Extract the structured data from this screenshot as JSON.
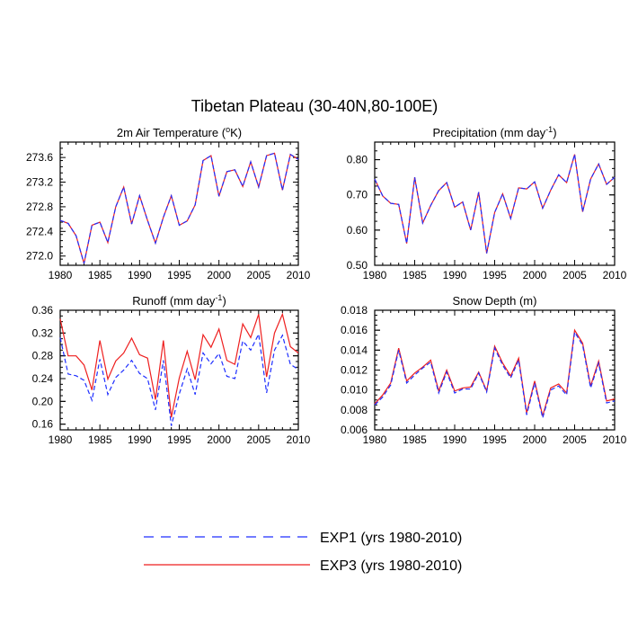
{
  "title": "Tibetan Plateau (30-40N,80-100E)",
  "colors": {
    "exp1": "#1f2fff",
    "exp3": "#ee1f1f"
  },
  "legend": [
    {
      "key": "exp1",
      "label": "EXP1 (yrs 1980-2010)",
      "style": "dashed"
    },
    {
      "key": "exp3",
      "label": "EXP3 (yrs 1980-2010)",
      "style": "solid"
    }
  ],
  "chart_data": [
    {
      "type": "line",
      "title": "2m Air Temperature (°K)",
      "title_parts": {
        "main": "2m Air Temperature (",
        "sup": "o",
        "tail": "K)"
      },
      "xlim": [
        1980,
        2010
      ],
      "ylim": [
        271.85,
        273.85
      ],
      "xticks": [
        1980,
        1985,
        1990,
        1995,
        2000,
        2005,
        2010
      ],
      "yticks": [
        "272.0",
        "272.4",
        "272.8",
        "273.2",
        "273.6"
      ],
      "x": [
        1980,
        1981,
        1982,
        1983,
        1984,
        1985,
        1986,
        1987,
        1988,
        1989,
        1990,
        1991,
        1992,
        1993,
        1994,
        1995,
        1996,
        1997,
        1998,
        1999,
        2000,
        2001,
        2002,
        2003,
        2004,
        2005,
        2006,
        2007,
        2008,
        2009,
        2010
      ],
      "series": [
        {
          "key": "exp1",
          "values": [
            272.58,
            272.53,
            272.33,
            271.88,
            272.5,
            272.55,
            272.22,
            272.8,
            273.12,
            272.52,
            272.98,
            272.58,
            272.21,
            272.63,
            272.98,
            272.5,
            272.57,
            272.83,
            273.55,
            273.63,
            272.97,
            273.37,
            273.4,
            273.13,
            273.53,
            273.12,
            273.63,
            273.67,
            273.07,
            273.65,
            273.57
          ]
        },
        {
          "key": "exp3",
          "values": [
            272.58,
            272.53,
            272.33,
            271.88,
            272.5,
            272.55,
            272.22,
            272.8,
            273.12,
            272.52,
            272.98,
            272.58,
            272.21,
            272.63,
            272.98,
            272.5,
            272.57,
            272.83,
            273.55,
            273.63,
            272.97,
            273.37,
            273.4,
            273.13,
            273.53,
            273.12,
            273.63,
            273.67,
            273.07,
            273.65,
            273.57
          ]
        }
      ]
    },
    {
      "type": "line",
      "title": "Precipitation (mm day-1)",
      "title_parts": {
        "main": "Precipitation (mm day",
        "sup": "-1",
        "tail": ")"
      },
      "xlim": [
        1980,
        2010
      ],
      "ylim": [
        0.5,
        0.85
      ],
      "xticks": [
        1980,
        1985,
        1990,
        1995,
        2000,
        2005,
        2010
      ],
      "yticks": [
        "0.50",
        "0.60",
        "0.70",
        "0.80"
      ],
      "x": [
        1980,
        1981,
        1982,
        1983,
        1984,
        1985,
        1986,
        1987,
        1988,
        1989,
        1990,
        1991,
        1992,
        1993,
        1994,
        1995,
        1996,
        1997,
        1998,
        1999,
        2000,
        2001,
        2002,
        2003,
        2004,
        2005,
        2006,
        2007,
        2008,
        2009,
        2010
      ],
      "series": [
        {
          "key": "exp1",
          "values": [
            0.745,
            0.697,
            0.676,
            0.673,
            0.562,
            0.75,
            0.62,
            0.67,
            0.712,
            0.735,
            0.665,
            0.68,
            0.6,
            0.708,
            0.534,
            0.65,
            0.703,
            0.633,
            0.72,
            0.717,
            0.737,
            0.662,
            0.713,
            0.757,
            0.735,
            0.815,
            0.652,
            0.745,
            0.788,
            0.73,
            0.75
          ]
        },
        {
          "key": "exp3",
          "values": [
            0.745,
            0.697,
            0.676,
            0.673,
            0.562,
            0.75,
            0.62,
            0.67,
            0.712,
            0.735,
            0.665,
            0.68,
            0.6,
            0.708,
            0.534,
            0.65,
            0.703,
            0.633,
            0.72,
            0.717,
            0.737,
            0.662,
            0.713,
            0.757,
            0.735,
            0.815,
            0.652,
            0.745,
            0.788,
            0.73,
            0.75
          ]
        }
      ]
    },
    {
      "type": "line",
      "title": "Runoff (mm day-1)",
      "title_parts": {
        "main": "Runoff (mm day",
        "sup": "-1",
        "tail": ")"
      },
      "xlim": [
        1980,
        2010
      ],
      "ylim": [
        0.15,
        0.36
      ],
      "xticks": [
        1980,
        1985,
        1990,
        1995,
        2000,
        2005,
        2010
      ],
      "yticks": [
        "0.16",
        "0.20",
        "0.24",
        "0.28",
        "0.32",
        "0.36"
      ],
      "x": [
        1980,
        1981,
        1982,
        1983,
        1984,
        1985,
        1986,
        1987,
        1988,
        1989,
        1990,
        1991,
        1992,
        1993,
        1994,
        1995,
        1996,
        1997,
        1998,
        1999,
        2000,
        2001,
        2002,
        2003,
        2004,
        2005,
        2006,
        2007,
        2008,
        2009,
        2010
      ],
      "series": [
        {
          "key": "exp1",
          "values": [
            0.312,
            0.248,
            0.245,
            0.237,
            0.202,
            0.274,
            0.212,
            0.242,
            0.255,
            0.272,
            0.249,
            0.24,
            0.185,
            0.272,
            0.157,
            0.213,
            0.257,
            0.212,
            0.285,
            0.266,
            0.284,
            0.244,
            0.24,
            0.306,
            0.29,
            0.318,
            0.215,
            0.29,
            0.316,
            0.265,
            0.256
          ]
        },
        {
          "key": "exp3",
          "values": [
            0.345,
            0.28,
            0.28,
            0.264,
            0.22,
            0.307,
            0.239,
            0.271,
            0.285,
            0.311,
            0.282,
            0.276,
            0.203,
            0.307,
            0.172,
            0.241,
            0.288,
            0.238,
            0.317,
            0.295,
            0.327,
            0.272,
            0.265,
            0.336,
            0.312,
            0.353,
            0.243,
            0.32,
            0.353,
            0.296,
            0.285
          ]
        }
      ]
    },
    {
      "type": "line",
      "title": "Snow Depth (m)",
      "title_parts": {
        "main": "Snow Depth (m)",
        "sup": "",
        "tail": ""
      },
      "xlim": [
        1980,
        2010
      ],
      "ylim": [
        0.006,
        0.018
      ],
      "xticks": [
        1980,
        1985,
        1990,
        1995,
        2000,
        2005,
        2010
      ],
      "yticks": [
        "0.006",
        "0.008",
        "0.010",
        "0.012",
        "0.014",
        "0.016",
        "0.018"
      ],
      "x": [
        1980,
        1981,
        1982,
        1983,
        1984,
        1985,
        1986,
        1987,
        1988,
        1989,
        1990,
        1991,
        1992,
        1993,
        1994,
        1995,
        1996,
        1997,
        1998,
        1999,
        2000,
        2001,
        2002,
        2003,
        2004,
        2005,
        2006,
        2007,
        2008,
        2009,
        2010
      ],
      "series": [
        {
          "key": "exp1",
          "values": [
            0.0085,
            0.0093,
            0.0105,
            0.014,
            0.0107,
            0.0115,
            0.0122,
            0.0128,
            0.0097,
            0.0118,
            0.0097,
            0.0101,
            0.0101,
            0.0117,
            0.0098,
            0.0142,
            0.0125,
            0.0112,
            0.013,
            0.0075,
            0.0107,
            0.0072,
            0.01,
            0.0104,
            0.0095,
            0.0158,
            0.0145,
            0.0102,
            0.0127,
            0.0087,
            0.0089
          ]
        },
        {
          "key": "exp3",
          "values": [
            0.0086,
            0.0095,
            0.0107,
            0.0142,
            0.0109,
            0.0117,
            0.0123,
            0.013,
            0.0099,
            0.012,
            0.0099,
            0.0102,
            0.0103,
            0.0118,
            0.0099,
            0.0144,
            0.0127,
            0.0114,
            0.0132,
            0.0077,
            0.0109,
            0.0074,
            0.0102,
            0.0106,
            0.0097,
            0.016,
            0.0147,
            0.0104,
            0.0129,
            0.0089,
            0.0091
          ]
        }
      ]
    }
  ]
}
